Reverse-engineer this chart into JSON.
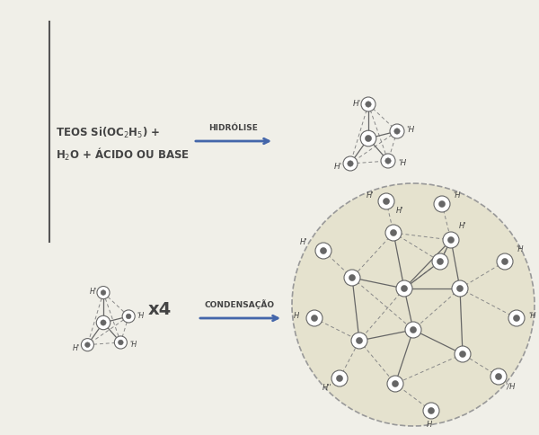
{
  "bg_color": "#f0efe8",
  "white": "#ffffff",
  "dark": "#555555",
  "blue_arrow": "#4466aa",
  "node_fill": "#ffffff",
  "node_edge": "#666666",
  "line_color": "#666666",
  "dashed_color": "#888888",
  "large_circle_fill": "#e5e2ce",
  "large_circle_edge": "#999999",
  "text_color": "#444444",
  "hidrolise_label": "HIDRÓLISE",
  "condensacao_label": "CONDENSAÇÃO",
  "x4_label": "x4"
}
